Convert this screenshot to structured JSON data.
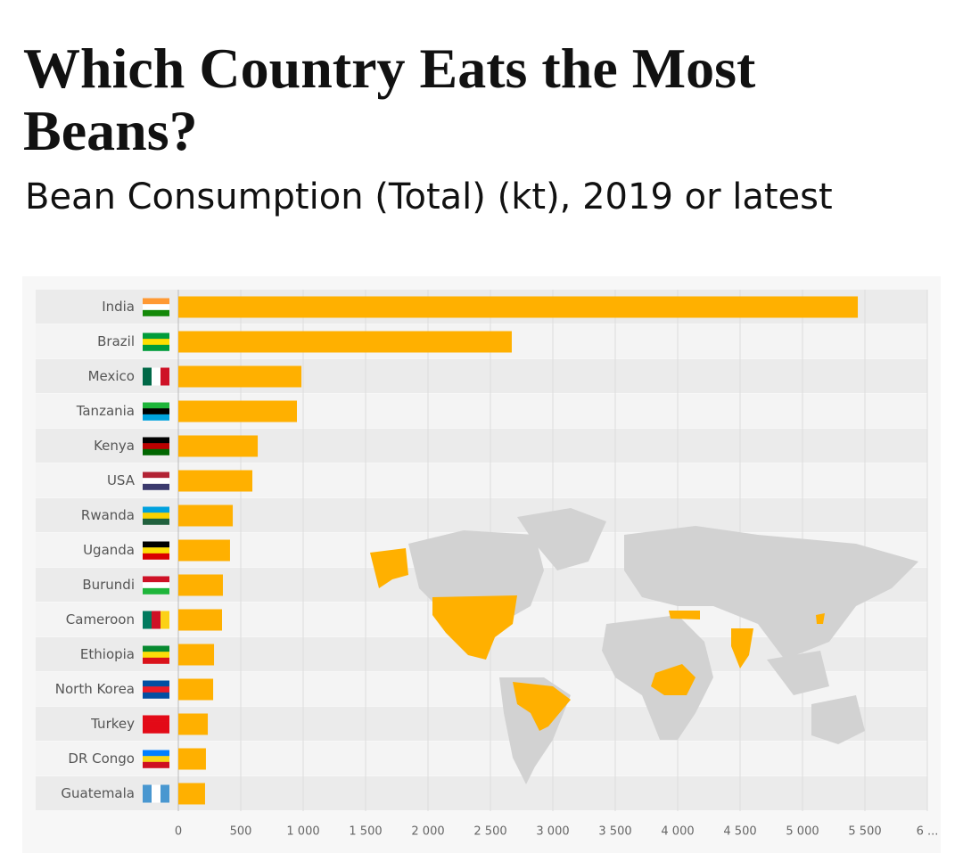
{
  "chart_data": {
    "type": "bar",
    "title": "Which Country Eats the Most Beans?",
    "subtitle": "Bean Consumption (Total) (kt), 2019 or latest",
    "categories": [
      "India",
      "Brazil",
      "Mexico",
      "Tanzania",
      "Kenya",
      "USA",
      "Rwanda",
      "Uganda",
      "Burundi",
      "Cameroon",
      "Ethiopia",
      "North Korea",
      "Turkey",
      "DR Congo",
      "Guatemala"
    ],
    "values": [
      5443,
      2671,
      986,
      950,
      636,
      593,
      436,
      414,
      357,
      350,
      286,
      279,
      236,
      221,
      214
    ],
    "color": "#ffb000",
    "xlim": [
      0,
      6000
    ],
    "xticks": [
      0,
      500,
      {
        "value": 1000,
        "label": "1 000"
      },
      {
        "value": 1500,
        "label": "1 500"
      },
      {
        "value": 2000,
        "label": "2 000"
      },
      {
        "value": 2500,
        "label": "2 500"
      },
      {
        "value": 3000,
        "label": "3 000"
      },
      {
        "value": 3500,
        "label": "3 500"
      },
      {
        "value": 4000,
        "label": "4 000"
      },
      {
        "value": 4500,
        "label": "4 500"
      },
      {
        "value": 5000,
        "label": "5 000"
      },
      {
        "value": 5500,
        "label": "5 500"
      },
      {
        "value": 6000,
        "label": "6 ..."
      }
    ],
    "grid": true
  }
}
